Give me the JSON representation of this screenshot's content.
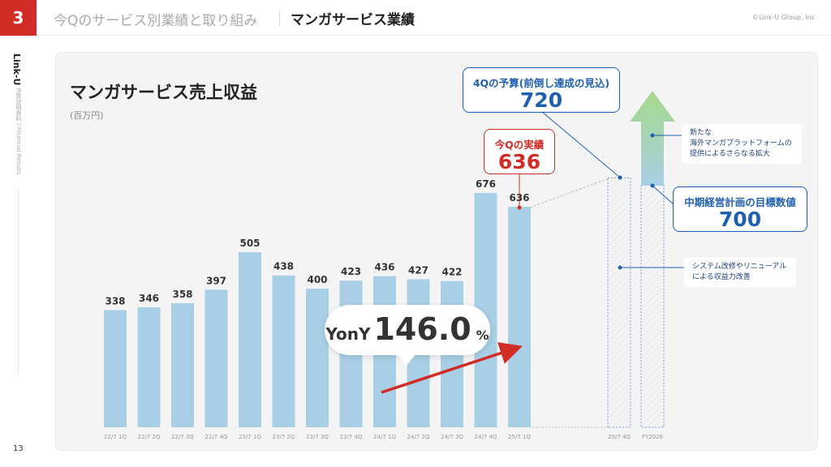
{
  "header": {
    "section": "3",
    "breadcrumb": "今Qのサービス別業績と取り組み",
    "title": "マンガサービス業績",
    "copyright": "©Link-U Group, Inc"
  },
  "sidebar": {
    "brand": "Link-U",
    "subtitle": "決算説明資料 / Financial Results",
    "page": "13"
  },
  "chart_data": {
    "type": "bar",
    "title": "マンガサービス売上収益",
    "unit": "(百万円)",
    "categories": [
      "22/7 1Q",
      "22/7 2Q",
      "22/7 3Q",
      "22/7 4Q",
      "23/7 1Q",
      "23/7 2Q",
      "23/7 3Q",
      "23/7 4Q",
      "24/7 1Q",
      "24/7 2Q",
      "24/7 3Q",
      "24/7 4Q",
      "25/7 1Q"
    ],
    "values": [
      338,
      346,
      358,
      397,
      505,
      438,
      400,
      423,
      436,
      427,
      422,
      676,
      636
    ],
    "projections": [
      {
        "category": "25/7 4Q",
        "value": 720
      },
      {
        "category": "FY2026",
        "value": 700
      }
    ],
    "ylim": [
      0,
      720
    ],
    "color": "#a8cfe5"
  },
  "callouts": {
    "budget": {
      "label": "4Qの予算(前倒し達成の見込)",
      "value": "720",
      "color": "#1f5fb0"
    },
    "actual": {
      "label": "今Qの実績",
      "value": "636",
      "color": "#d22c26"
    },
    "target": {
      "label": "中期経営計画の目標数値",
      "value": "700",
      "color": "#1f5fb0"
    },
    "yoy": {
      "label": "YonY",
      "value": "146.0",
      "unit": "%"
    },
    "note1": [
      "新たな",
      "海外マンガプラットフォームの",
      "提供によるさらなる拡大"
    ],
    "note2": [
      "システム改修やリニューアル",
      "による収益力改善"
    ]
  }
}
